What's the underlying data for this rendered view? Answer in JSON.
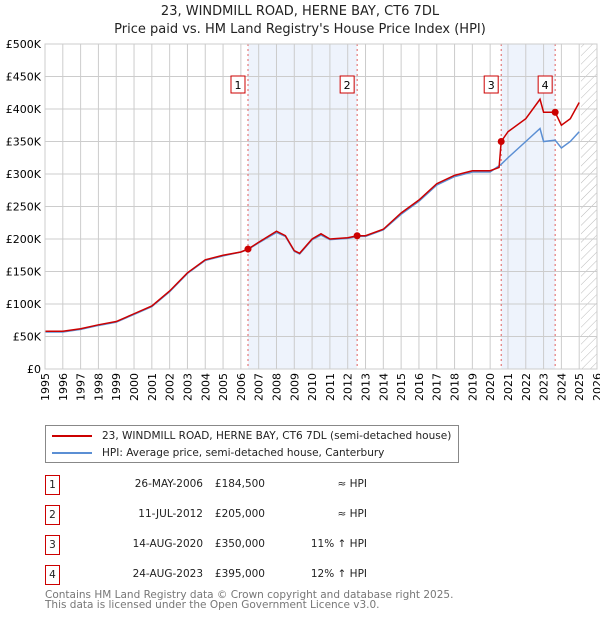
{
  "title": "23, WINDMILL ROAD, HERNE BAY, CT6 7DL",
  "subtitle": "Price paid vs. HM Land Registry's House Price Index (HPI)",
  "chart_data": {
    "type": "line",
    "xlim": [
      1995,
      2026
    ],
    "ylim": [
      0,
      500000
    ],
    "yticks": [
      0,
      50000,
      100000,
      150000,
      200000,
      250000,
      300000,
      350000,
      400000,
      450000,
      500000
    ],
    "ytick_labels": [
      "£0",
      "£50K",
      "£100K",
      "£150K",
      "£200K",
      "£250K",
      "£300K",
      "£350K",
      "£400K",
      "£450K",
      "£500K"
    ],
    "xticks": [
      1995,
      1996,
      1997,
      1998,
      1999,
      2000,
      2001,
      2002,
      2003,
      2004,
      2005,
      2006,
      2007,
      2008,
      2009,
      2010,
      2011,
      2012,
      2013,
      2014,
      2015,
      2016,
      2017,
      2018,
      2019,
      2020,
      2021,
      2022,
      2023,
      2024,
      2025,
      2026
    ],
    "grid": true,
    "forecast_start": 2025.1,
    "shaded": [
      [
        2006.4,
        2012.53
      ],
      [
        2020.62,
        2023.65
      ]
    ],
    "series": [
      {
        "name": "23, WINDMILL ROAD, HERNE BAY, CT6 7DL (semi-detached house)",
        "color": "#cc0000",
        "x": [
          1995,
          1996,
          1997,
          1998,
          1999,
          2000,
          2001,
          2002,
          2003,
          2004,
          2005,
          2006,
          2006.4,
          2007,
          2008,
          2008.5,
          2009,
          2009.3,
          2010,
          2010.5,
          2011,
          2012,
          2012.53,
          2013,
          2014,
          2015,
          2016,
          2017,
          2018,
          2019,
          2020,
          2020.5,
          2020.62,
          2021,
          2022,
          2022.8,
          2023,
          2023.65,
          2024,
          2024.5,
          2025
        ],
        "y": [
          58000,
          58000,
          62000,
          68000,
          73000,
          85000,
          97000,
          120000,
          148000,
          168000,
          175000,
          180000,
          184500,
          195000,
          212000,
          205000,
          182000,
          178000,
          200000,
          208000,
          200000,
          202000,
          205000,
          205000,
          215000,
          240000,
          260000,
          285000,
          298000,
          305000,
          305000,
          310000,
          350000,
          365000,
          385000,
          415000,
          395000,
          395000,
          375000,
          385000,
          410000
        ]
      },
      {
        "name": "HPI: Average price, semi-detached house, Canterbury",
        "color": "#5b8fd4",
        "x": [
          1995,
          1996,
          1997,
          1998,
          1999,
          2000,
          2001,
          2002,
          2003,
          2004,
          2005,
          2006,
          2006.4,
          2007,
          2008,
          2008.5,
          2009,
          2009.3,
          2010,
          2010.5,
          2011,
          2012,
          2012.53,
          2013,
          2014,
          2015,
          2016,
          2017,
          2018,
          2019,
          2020,
          2020.62,
          2021,
          2022,
          2022.8,
          2023,
          2023.65,
          2024,
          2024.5,
          2025
        ],
        "y": [
          57000,
          57000,
          61000,
          67000,
          72000,
          84000,
          96000,
          119000,
          147000,
          167000,
          174000,
          180000,
          184000,
          194000,
          210000,
          204000,
          181000,
          177000,
          199000,
          206000,
          199000,
          201000,
          204000,
          204000,
          214000,
          238000,
          258000,
          283000,
          296000,
          303000,
          303000,
          315000,
          325000,
          350000,
          370000,
          350000,
          352000,
          340000,
          350000,
          365000
        ]
      }
    ],
    "markers": [
      {
        "label": "1",
        "x": 2006.4,
        "y": 184500
      },
      {
        "label": "2",
        "x": 2012.53,
        "y": 205000
      },
      {
        "label": "3",
        "x": 2020.62,
        "y": 350000
      },
      {
        "label": "4",
        "x": 2023.65,
        "y": 395000
      }
    ]
  },
  "legend": [
    {
      "label": "23, WINDMILL ROAD, HERNE BAY, CT6 7DL (semi-detached house)",
      "color": "#cc0000"
    },
    {
      "label": "HPI: Average price, semi-detached house, Canterbury",
      "color": "#5b8fd4"
    }
  ],
  "transactions": [
    {
      "num": "1",
      "date": "26-MAY-2006",
      "price": "£184,500",
      "rel": "≈ HPI"
    },
    {
      "num": "2",
      "date": "11-JUL-2012",
      "price": "£205,000",
      "rel": "≈ HPI"
    },
    {
      "num": "3",
      "date": "14-AUG-2020",
      "price": "£350,000",
      "rel": "11% ↑ HPI"
    },
    {
      "num": "4",
      "date": "24-AUG-2023",
      "price": "£395,000",
      "rel": "12% ↑ HPI"
    }
  ],
  "footer": [
    "Contains HM Land Registry data © Crown copyright and database right 2025.",
    "This data is licensed under the Open Government Licence v3.0."
  ]
}
